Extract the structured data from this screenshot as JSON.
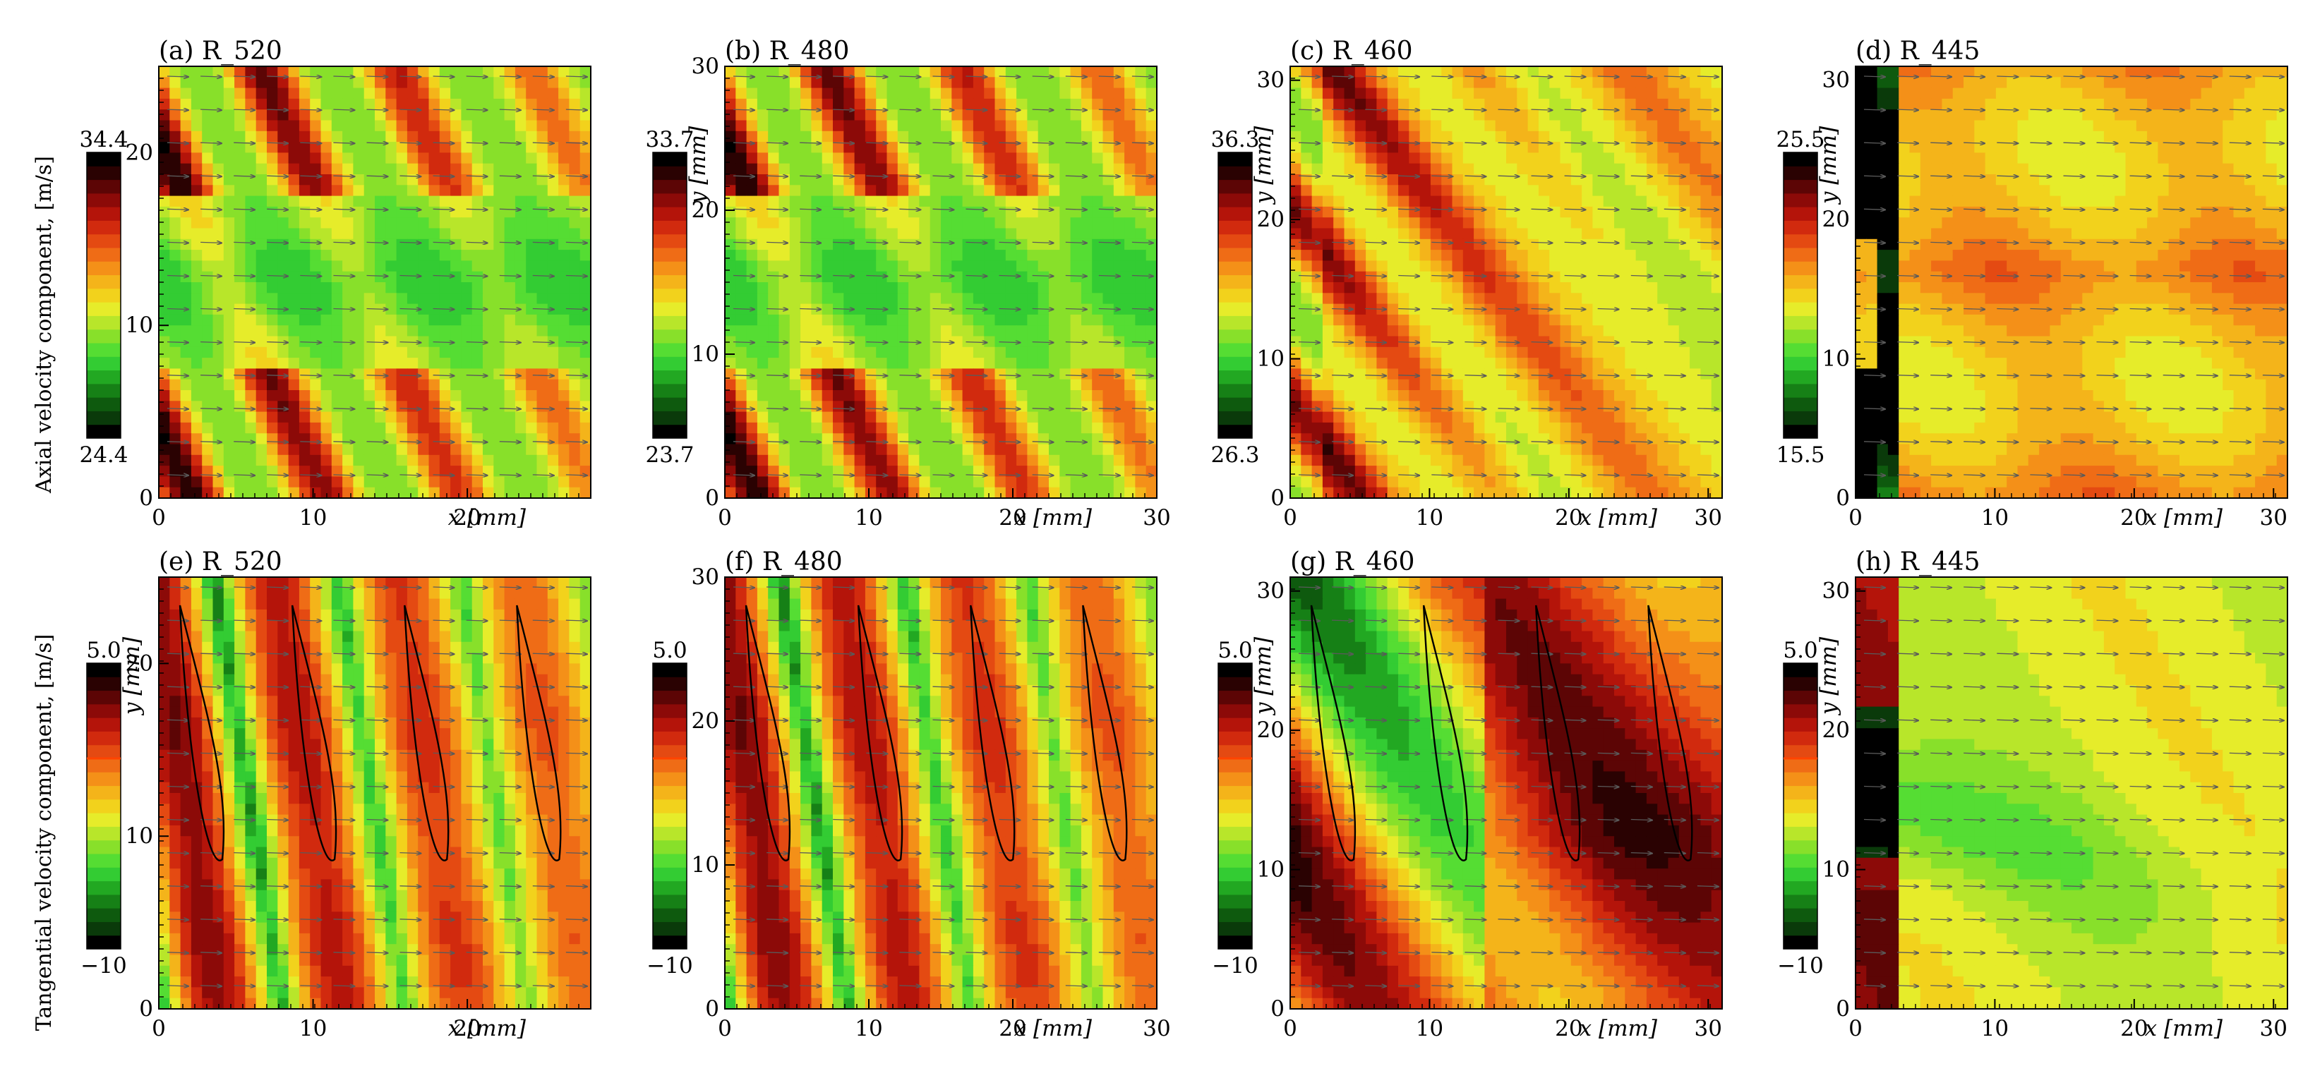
{
  "colors": {
    "ramp": [
      "#000000",
      "#0a3a0a",
      "#0e5a0e",
      "#168016",
      "#22a822",
      "#33cc33",
      "#55dd33",
      "#88e02a",
      "#b8e62a",
      "#e6ec2a",
      "#f2d21c",
      "#f4b41a",
      "#f49018",
      "#ef6c16",
      "#e44a12",
      "#d12a0e",
      "#b4140a",
      "#8c0a08",
      "#5c0505",
      "#2a0202",
      "#000000"
    ],
    "contour": "#000000",
    "arrow": "#5a5a5a",
    "zero_marker": "#ff4400"
  },
  "row_labels": {
    "top": "Axial velocity component, [m/s]",
    "bottom": "Tangential velocity component, [m/s]"
  },
  "axis_labels": {
    "x": "x [mm]",
    "y": "y [mm]"
  },
  "chart_data": [
    {
      "id": "a",
      "type": "heatmap",
      "title": "(a) R_520",
      "row": 0,
      "col": 0,
      "quantity": "axial",
      "xlim": [
        0,
        28
      ],
      "ylim": [
        0,
        25
      ],
      "xticks": [
        {
          "v": 0,
          "label": "0"
        },
        {
          "v": 10,
          "label": "10"
        },
        {
          "v": 20,
          "label": "20"
        }
      ],
      "yticks": [
        {
          "v": 0,
          "label": "0"
        },
        {
          "v": 10,
          "label": "10"
        },
        {
          "v": 20,
          "label": "20"
        }
      ],
      "show_xlabel": true,
      "show_ylabel": false,
      "colorbar": {
        "max_label": "34.4",
        "min_label": "24.4",
        "range": [
          24.4,
          34.4
        ]
      }
    },
    {
      "id": "b",
      "type": "heatmap",
      "title": "(b) R_480",
      "row": 0,
      "col": 1,
      "quantity": "axial",
      "xlim": [
        0,
        30
      ],
      "ylim": [
        0,
        30
      ],
      "xticks": [
        {
          "v": 0,
          "label": "0"
        },
        {
          "v": 10,
          "label": "10"
        },
        {
          "v": 20,
          "label": "20"
        },
        {
          "v": 30,
          "label": "30"
        }
      ],
      "yticks": [
        {
          "v": 0,
          "label": "0"
        },
        {
          "v": 10,
          "label": "10"
        },
        {
          "v": 20,
          "label": "20"
        },
        {
          "v": 30,
          "label": "30"
        }
      ],
      "show_xlabel": true,
      "show_ylabel": true,
      "colorbar": {
        "max_label": "33.7",
        "min_label": "23.7",
        "range": [
          23.7,
          33.7
        ]
      }
    },
    {
      "id": "c",
      "type": "heatmap",
      "title": "(c) R_460",
      "row": 0,
      "col": 2,
      "quantity": "axial",
      "xlim": [
        0,
        31
      ],
      "ylim": [
        0,
        31
      ],
      "xticks": [
        {
          "v": 0,
          "label": "0"
        },
        {
          "v": 10,
          "label": "10"
        },
        {
          "v": 20,
          "label": "20"
        },
        {
          "v": 30,
          "label": "30"
        }
      ],
      "yticks": [
        {
          "v": 0,
          "label": "0"
        },
        {
          "v": 10,
          "label": "10"
        },
        {
          "v": 20,
          "label": "20"
        },
        {
          "v": 30,
          "label": "30"
        }
      ],
      "show_xlabel": true,
      "show_ylabel": true,
      "colorbar": {
        "max_label": "36.3",
        "min_label": "26.3",
        "range": [
          26.3,
          36.3
        ]
      }
    },
    {
      "id": "d",
      "type": "heatmap",
      "title": "(d) R_445",
      "row": 0,
      "col": 3,
      "quantity": "axial",
      "xlim": [
        0,
        31
      ],
      "ylim": [
        0,
        31
      ],
      "xticks": [
        {
          "v": 0,
          "label": "0"
        },
        {
          "v": 10,
          "label": "10"
        },
        {
          "v": 20,
          "label": "20"
        },
        {
          "v": 30,
          "label": "30"
        }
      ],
      "yticks": [
        {
          "v": 0,
          "label": "0"
        },
        {
          "v": 10,
          "label": "10"
        },
        {
          "v": 20,
          "label": "20"
        },
        {
          "v": 30,
          "label": "30"
        }
      ],
      "show_xlabel": true,
      "show_ylabel": true,
      "colorbar": {
        "max_label": "25.5",
        "min_label": "15.5",
        "range": [
          15.5,
          25.5
        ]
      }
    },
    {
      "id": "e",
      "type": "heatmap",
      "title": "(e) R_520",
      "row": 1,
      "col": 0,
      "quantity": "tangential",
      "xlim": [
        0,
        28
      ],
      "ylim": [
        0,
        25
      ],
      "xticks": [
        {
          "v": 0,
          "label": "0"
        },
        {
          "v": 10,
          "label": "10"
        },
        {
          "v": 20,
          "label": "20"
        }
      ],
      "yticks": [
        {
          "v": 0,
          "label": "0"
        },
        {
          "v": 10,
          "label": "10"
        },
        {
          "v": 20,
          "label": "20"
        }
      ],
      "show_xlabel": true,
      "show_ylabel": true,
      "colorbar": {
        "max_label": "5.0",
        "min_label": "−10",
        "range": [
          -10,
          5
        ]
      }
    },
    {
      "id": "f",
      "type": "heatmap",
      "title": "(f) R_480",
      "row": 1,
      "col": 1,
      "quantity": "tangential",
      "xlim": [
        0,
        30
      ],
      "ylim": [
        0,
        30
      ],
      "xticks": [
        {
          "v": 0,
          "label": "0"
        },
        {
          "v": 10,
          "label": "10"
        },
        {
          "v": 20,
          "label": "20"
        },
        {
          "v": 30,
          "label": "30"
        }
      ],
      "yticks": [
        {
          "v": 0,
          "label": "0"
        },
        {
          "v": 10,
          "label": "10"
        },
        {
          "v": 20,
          "label": "20"
        },
        {
          "v": 30,
          "label": "30"
        }
      ],
      "show_xlabel": true,
      "show_ylabel": false,
      "colorbar": {
        "max_label": "5.0",
        "min_label": "−10",
        "range": [
          -10,
          5
        ]
      }
    },
    {
      "id": "g",
      "type": "heatmap",
      "title": "(g) R_460",
      "row": 1,
      "col": 2,
      "quantity": "tangential",
      "xlim": [
        0,
        31
      ],
      "ylim": [
        0,
        31
      ],
      "xticks": [
        {
          "v": 0,
          "label": "0"
        },
        {
          "v": 10,
          "label": "10"
        },
        {
          "v": 20,
          "label": "20"
        },
        {
          "v": 30,
          "label": "30"
        }
      ],
      "yticks": [
        {
          "v": 0,
          "label": "0"
        },
        {
          "v": 10,
          "label": "10"
        },
        {
          "v": 20,
          "label": "20"
        },
        {
          "v": 30,
          "label": "30"
        }
      ],
      "show_xlabel": true,
      "show_ylabel": true,
      "colorbar": {
        "max_label": "5.0",
        "min_label": "−10",
        "range": [
          -10,
          5
        ]
      }
    },
    {
      "id": "h",
      "type": "heatmap",
      "title": "(h) R_445",
      "row": 1,
      "col": 3,
      "quantity": "tangential",
      "xlim": [
        0,
        31
      ],
      "ylim": [
        0,
        31
      ],
      "xticks": [
        {
          "v": 0,
          "label": "0"
        },
        {
          "v": 10,
          "label": "10"
        },
        {
          "v": 20,
          "label": "20"
        },
        {
          "v": 30,
          "label": "30"
        }
      ],
      "yticks": [
        {
          "v": 0,
          "label": "0"
        },
        {
          "v": 10,
          "label": "10"
        },
        {
          "v": 20,
          "label": "20"
        },
        {
          "v": 30,
          "label": "30"
        }
      ],
      "show_xlabel": true,
      "show_ylabel": true,
      "colorbar": {
        "max_label": "5.0",
        "min_label": "−10",
        "range": [
          -10,
          5
        ]
      }
    }
  ]
}
